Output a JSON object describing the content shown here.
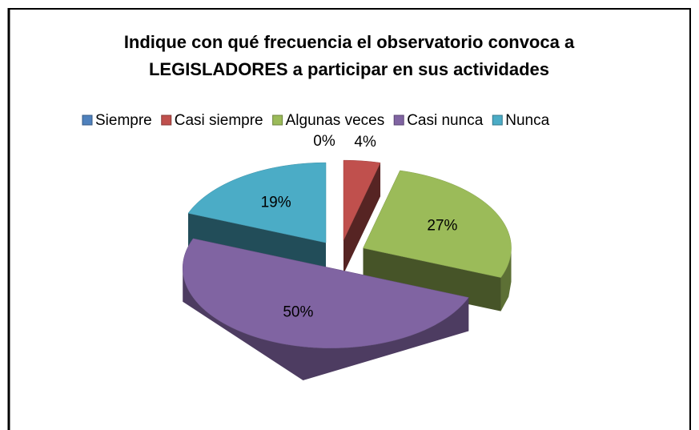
{
  "chart_data": {
    "type": "pie",
    "title": "Indique con qué frecuencia el observatorio convoca a LEGISLADORES a participar en sus actividades",
    "title_lines": [
      "Indique con qué frecuencia el observatorio convoca a",
      "LEGISLADORES a participar en sus actividades"
    ],
    "categories": [
      "Siempre",
      "Casi siempre",
      "Algunas veces",
      "Casi nunca",
      "Nunca"
    ],
    "values": [
      0,
      4,
      27,
      50,
      19
    ],
    "value_labels": [
      "0%",
      "4%",
      "27%",
      "50%",
      "19%"
    ],
    "colors": [
      "#4f81bd",
      "#c0504d",
      "#9bbb59",
      "#8064a2",
      "#4bacc6"
    ],
    "legend": "top",
    "exploded": true,
    "three_d": true
  }
}
